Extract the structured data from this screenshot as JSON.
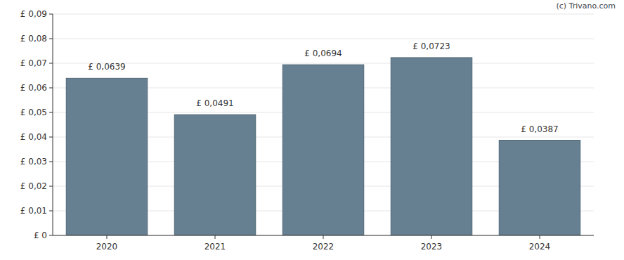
{
  "chart_data": {
    "type": "bar",
    "categories": [
      "2020",
      "2021",
      "2022",
      "2023",
      "2024"
    ],
    "values": [
      0.0639,
      0.0491,
      0.0694,
      0.0723,
      0.0387
    ],
    "value_labels": [
      "£ 0,0639",
      "£ 0,0491",
      "£ 0,0694",
      "£ 0,0723",
      "£ 0,0387"
    ],
    "color": "#667f91",
    "ylim": [
      0,
      0.09
    ],
    "yticks": [
      {
        "value": 0,
        "label": "£ 0"
      },
      {
        "value": 0.01,
        "label": "£ 0,01"
      },
      {
        "value": 0.02,
        "label": "£ 0,02"
      },
      {
        "value": 0.03,
        "label": "£ 0,03"
      },
      {
        "value": 0.04,
        "label": "£ 0,04"
      },
      {
        "value": 0.05,
        "label": "£ 0,05"
      },
      {
        "value": 0.06,
        "label": "£ 0,06"
      },
      {
        "value": 0.07,
        "label": "£ 0,07"
      },
      {
        "value": 0.08,
        "label": "£ 0,08"
      },
      {
        "value": 0.09,
        "label": "£ 0,09"
      }
    ],
    "grid": true,
    "data_labels": true,
    "annotations": [
      "(c) Trivano.com"
    ]
  }
}
